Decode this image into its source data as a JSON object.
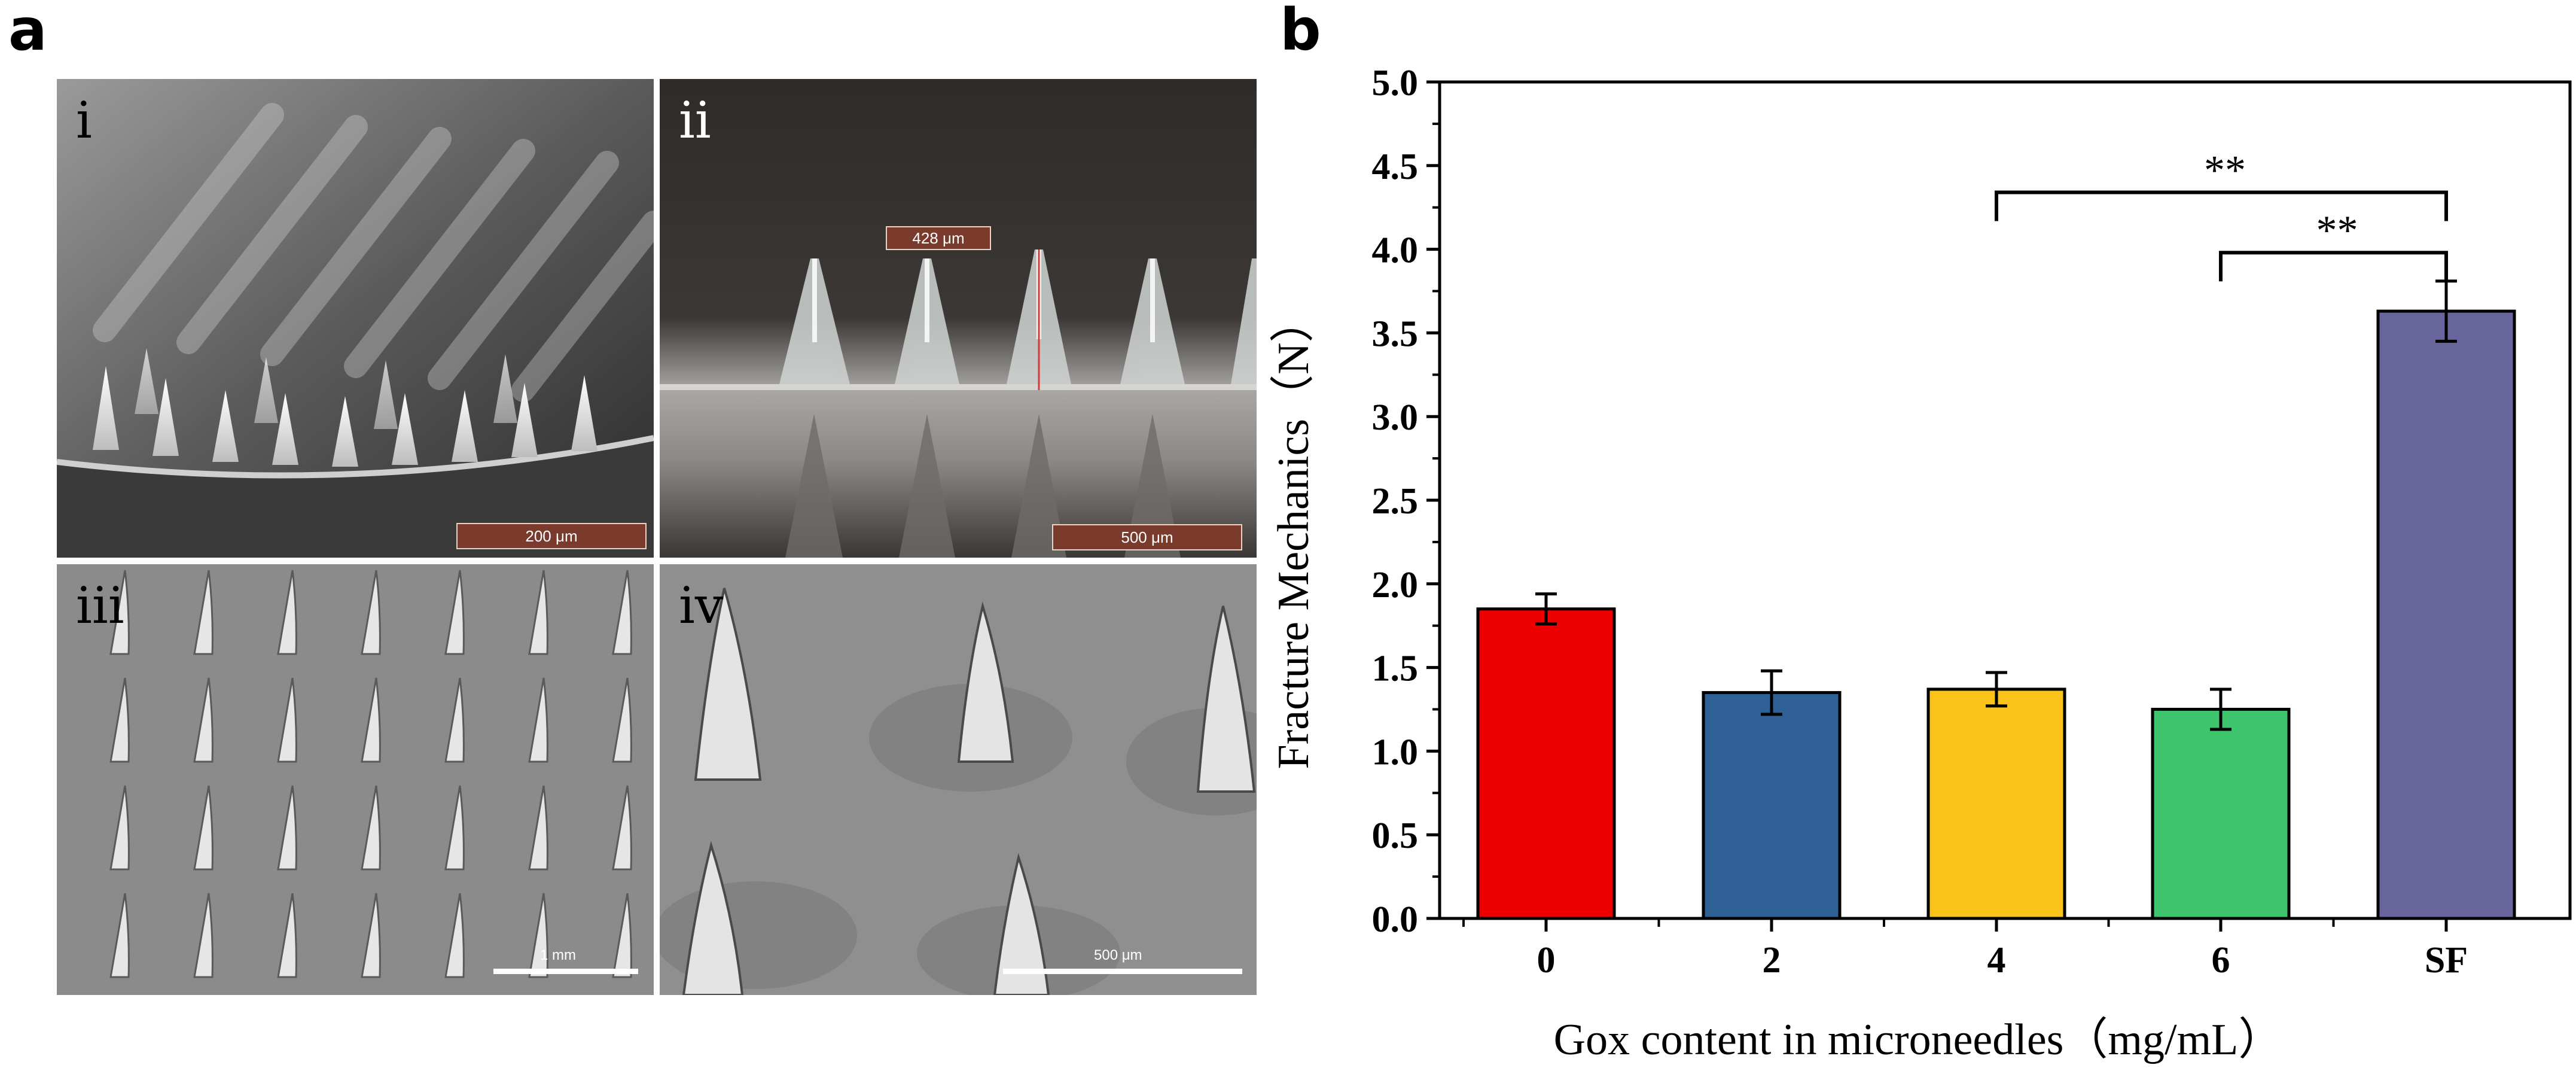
{
  "figure": {
    "panel_a_letter": "a",
    "panel_b_letter": "b"
  },
  "photos": [
    {
      "label": "i",
      "scale_bar": "200 μm"
    },
    {
      "label": "ii",
      "scale_bar": "500 μm",
      "measurement": "428 μm"
    },
    {
      "label": "iii",
      "scale_bar": "1 mm"
    },
    {
      "label": "iv",
      "scale_bar": "500 μm"
    }
  ],
  "chart_data": {
    "type": "bar",
    "title": "",
    "categories": [
      "0",
      "2",
      "4",
      "6",
      "SF"
    ],
    "values": [
      1.85,
      1.35,
      1.37,
      1.25,
      3.63
    ],
    "errors": [
      0.09,
      0.13,
      0.1,
      0.12,
      0.18
    ],
    "colors": [
      "#ee0000",
      "#2f6096",
      "#fbc21a",
      "#3ec46d",
      "#67659c"
    ],
    "xlabel": "Gox content in microneedles（mg/mL）",
    "ylabel": "Fracture Mechanics（N）",
    "ylim": [
      0,
      5.0
    ],
    "yticks": [
      "0.0",
      "0.5",
      "1.0",
      "1.5",
      "2.0",
      "2.5",
      "3.0",
      "3.5",
      "4.0",
      "4.5",
      "5.0"
    ],
    "ytick_values": [
      0,
      0.5,
      1.0,
      1.5,
      2.0,
      2.5,
      3.0,
      3.5,
      4.0,
      4.5,
      5.0
    ],
    "significance": [
      {
        "from": "4",
        "to": "SF",
        "label": "**",
        "level": 4.34
      },
      {
        "from": "6",
        "to": "SF",
        "label": "**",
        "level": 3.98
      }
    ]
  }
}
